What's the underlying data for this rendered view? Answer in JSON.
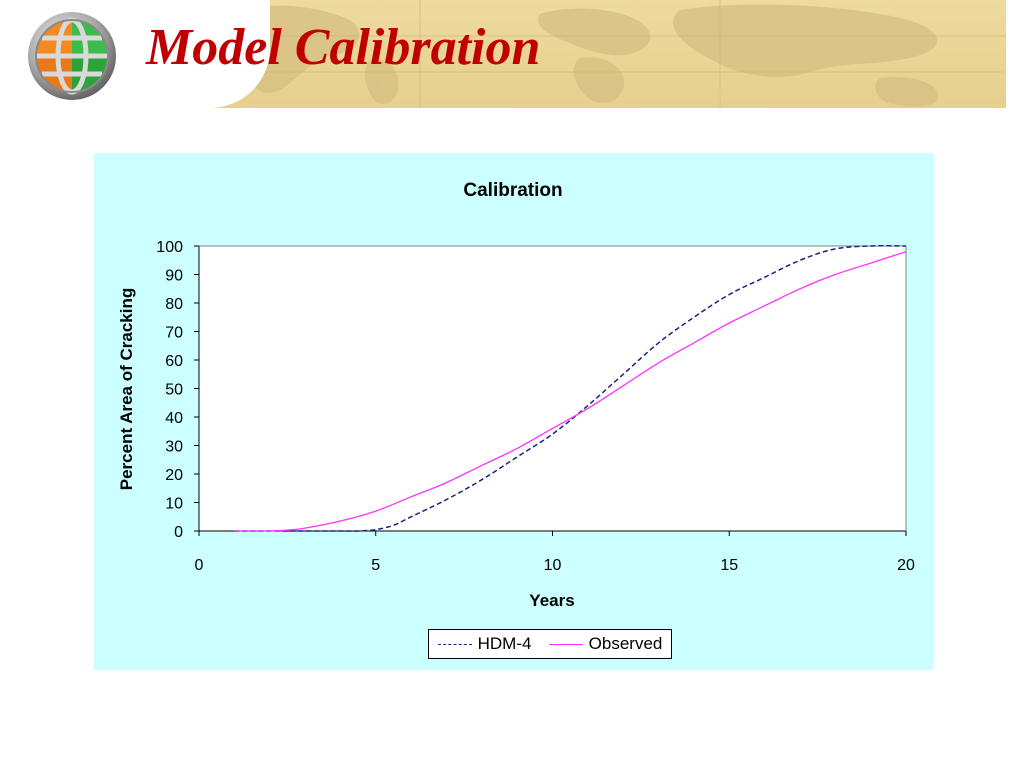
{
  "slide": {
    "title": "Model Calibration"
  },
  "colors": {
    "title": "#c00000",
    "banner": "#e9d497",
    "plot_panel": "#ccffff",
    "hdm4": "#1a237e",
    "observed": "#ff33ff"
  },
  "icons": {
    "logo": "globe-icon"
  },
  "chart_data": {
    "type": "line",
    "title": "Calibration",
    "xlabel": "Years",
    "ylabel": "Percent Area of Cracking",
    "xlim": [
      0,
      20
    ],
    "ylim": [
      0,
      100
    ],
    "x_ticks": [
      0,
      5,
      10,
      15,
      20
    ],
    "y_ticks": [
      0,
      10,
      20,
      30,
      40,
      50,
      60,
      70,
      80,
      90,
      100
    ],
    "grid": false,
    "legend": "bottom",
    "series": [
      {
        "name": "HDM-4",
        "style": "dashed",
        "x": [
          1,
          2,
          3,
          4,
          4.5,
          5,
          5.5,
          6,
          7,
          8,
          9,
          10,
          11,
          12,
          13,
          14,
          15,
          16,
          17,
          18,
          19,
          20
        ],
        "y": [
          0,
          0,
          0,
          0,
          0,
          0.5,
          2,
          5,
          11,
          18,
          26,
          34,
          44,
          55,
          66,
          75,
          83,
          89,
          95,
          99,
          100,
          100
        ]
      },
      {
        "name": "Observed",
        "style": "solid",
        "x": [
          1,
          2,
          2.5,
          3,
          4,
          5,
          6,
          7,
          8,
          9,
          10,
          11,
          12,
          13,
          14,
          15,
          16,
          17,
          18,
          19,
          20
        ],
        "y": [
          0,
          0,
          0.3,
          1,
          3.5,
          7,
          12,
          17,
          23,
          29,
          36,
          43,
          51,
          59,
          66,
          73,
          79,
          85,
          90,
          94,
          98
        ]
      }
    ]
  }
}
